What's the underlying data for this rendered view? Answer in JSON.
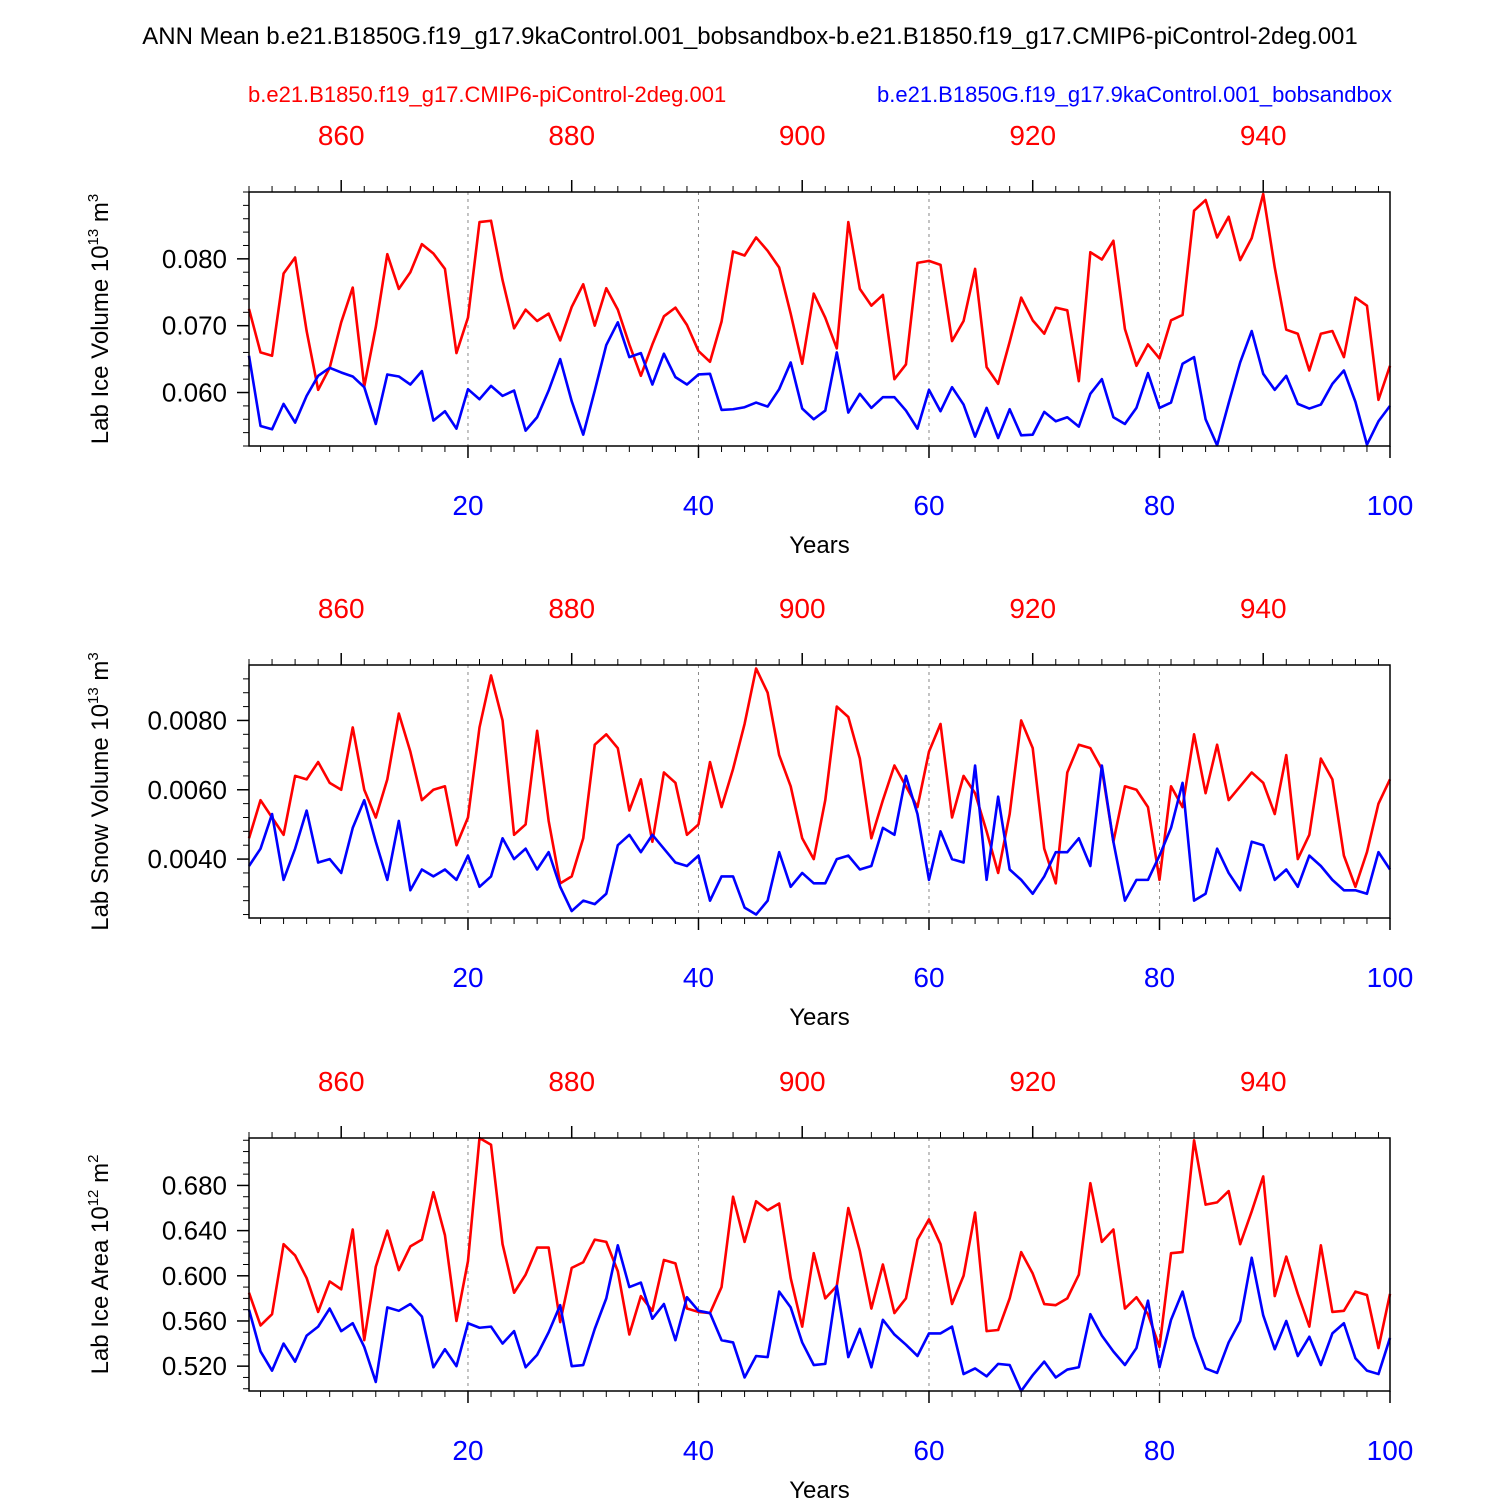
{
  "title": "ANN Mean b.e21.B1850G.f19_g17.9kaControl.001_bobsandbox-b.e21.B1850.f19_g17.CMIP6-piControl-2deg.001",
  "legend": {
    "red_label": "b.e21.B1850.f19_g17.CMIP6-piControl-2deg.001",
    "blue_label": "b.e21.B1850G.f19_g17.9kaControl.001_bobsandbox"
  },
  "colors": {
    "red": "#ff0000",
    "blue": "#0000ff",
    "axis": "#000000",
    "grid": "#888888"
  },
  "chart_data": [
    {
      "type": "line",
      "ylabel": "Lab Ice Volume",
      "yunit": "10^13 m^3",
      "yunit_parts": [
        "Lab Ice Volume 10",
        "13",
        " m",
        "3"
      ],
      "xlabel": "Years",
      "xlim": [
        1,
        100
      ],
      "ylim": [
        0.052,
        0.09
      ],
      "yticks": [
        0.06,
        0.07,
        0.08
      ],
      "ytick_labels": [
        "0.060",
        "0.070",
        "0.080"
      ],
      "yminor": [
        0.052,
        0.054,
        0.056,
        0.058,
        0.062,
        0.064,
        0.066,
        0.068,
        0.072,
        0.074,
        0.076,
        0.078,
        0.082,
        0.084,
        0.086,
        0.088,
        0.09
      ],
      "xticks": [
        20,
        40,
        60,
        80,
        100
      ],
      "xtick_labels": [
        "20",
        "40",
        "60",
        "80",
        "100"
      ],
      "top_xticks": [
        860,
        880,
        900,
        920,
        940
      ],
      "top_xtick_labels": [
        "860",
        "880",
        "900",
        "920",
        "940"
      ],
      "top_offset": 851,
      "grid_x": [
        20,
        40,
        60,
        80
      ],
      "series": [
        {
          "name": "b.e21.B1850.f19_g17.CMIP6-piControl-2deg.001",
          "color": "red",
          "values": [
            0.0725,
            0.066,
            0.0655,
            0.0778,
            0.0802,
            0.0692,
            0.0604,
            0.0637,
            0.0705,
            0.0757,
            0.0609,
            0.0698,
            0.0807,
            0.0755,
            0.078,
            0.0822,
            0.0808,
            0.0785,
            0.0659,
            0.0712,
            0.0855,
            0.0857,
            0.0768,
            0.0696,
            0.0724,
            0.0707,
            0.0718,
            0.0678,
            0.0728,
            0.0762,
            0.07,
            0.0756,
            0.0724,
            0.0672,
            0.0625,
            0.0672,
            0.0714,
            0.0727,
            0.0701,
            0.0662,
            0.0646,
            0.0706,
            0.0811,
            0.0805,
            0.0832,
            0.0812,
            0.0787,
            0.0718,
            0.0643,
            0.0748,
            0.0712,
            0.0666,
            0.0855,
            0.0755,
            0.073,
            0.0746,
            0.062,
            0.0642,
            0.0794,
            0.0797,
            0.0791,
            0.0677,
            0.0707,
            0.0785,
            0.0638,
            0.0613,
            0.0676,
            0.0742,
            0.0708,
            0.0688,
            0.0727,
            0.0723,
            0.0617,
            0.081,
            0.0799,
            0.0827,
            0.0695,
            0.064,
            0.0672,
            0.0651,
            0.0708,
            0.0716,
            0.0872,
            0.0888,
            0.0832,
            0.0863,
            0.0798,
            0.0831,
            0.0897,
            0.0787,
            0.0694,
            0.0688,
            0.0633,
            0.0688,
            0.0692,
            0.0653,
            0.0742,
            0.073,
            0.0589,
            0.064
          ]
        },
        {
          "name": "b.e21.B1850G.f19_g17.9kaControl.001_bobsandbox",
          "color": "blue",
          "values": [
            0.0655,
            0.055,
            0.0545,
            0.0583,
            0.0555,
            0.0595,
            0.0625,
            0.0637,
            0.063,
            0.0624,
            0.0608,
            0.0553,
            0.0627,
            0.0624,
            0.0612,
            0.0632,
            0.0558,
            0.0572,
            0.0546,
            0.0605,
            0.059,
            0.061,
            0.0595,
            0.0603,
            0.0543,
            0.0563,
            0.0603,
            0.065,
            0.0587,
            0.0537,
            0.0603,
            0.0671,
            0.0705,
            0.0653,
            0.0659,
            0.0612,
            0.0658,
            0.0623,
            0.0612,
            0.0627,
            0.0628,
            0.0574,
            0.0575,
            0.0578,
            0.0585,
            0.0579,
            0.0605,
            0.0645,
            0.0576,
            0.056,
            0.0573,
            0.066,
            0.057,
            0.0598,
            0.0577,
            0.0593,
            0.0593,
            0.0573,
            0.0546,
            0.0604,
            0.0572,
            0.0608,
            0.0582,
            0.0534,
            0.0577,
            0.0532,
            0.0575,
            0.0536,
            0.0537,
            0.0571,
            0.0557,
            0.0563,
            0.0549,
            0.0598,
            0.062,
            0.0563,
            0.0553,
            0.0577,
            0.0629,
            0.0577,
            0.0585,
            0.0643,
            0.0653,
            0.056,
            0.0521,
            0.0584,
            0.0645,
            0.0692,
            0.0628,
            0.0604,
            0.0625,
            0.0583,
            0.0576,
            0.0582,
            0.0613,
            0.0633,
            0.0586,
            0.0522,
            0.0557,
            0.058
          ]
        }
      ]
    },
    {
      "type": "line",
      "ylabel": "Lab Snow Volume",
      "yunit": "10^13 m^3",
      "yunit_parts": [
        "Lab Snow Volume 10",
        "13",
        " m",
        "3"
      ],
      "xlabel": "Years",
      "xlim": [
        1,
        100
      ],
      "ylim": [
        0.0023,
        0.0096
      ],
      "yticks": [
        0.004,
        0.006,
        0.008
      ],
      "ytick_labels": [
        "0.0040",
        "0.0060",
        "0.0080"
      ],
      "yminor": [
        0.0024,
        0.0028,
        0.0032,
        0.0036,
        0.0044,
        0.0048,
        0.0052,
        0.0056,
        0.0064,
        0.0068,
        0.0072,
        0.0076,
        0.0084,
        0.0088,
        0.0092
      ],
      "xticks": [
        20,
        40,
        60,
        80,
        100
      ],
      "xtick_labels": [
        "20",
        "40",
        "60",
        "80",
        "100"
      ],
      "top_xticks": [
        860,
        880,
        900,
        920,
        940
      ],
      "top_xtick_labels": [
        "860",
        "880",
        "900",
        "920",
        "940"
      ],
      "top_offset": 851,
      "grid_x": [
        20,
        40,
        60,
        80
      ],
      "series": [
        {
          "name": "b.e21.B1850.f19_g17.CMIP6-piControl-2deg.001",
          "color": "red",
          "values": [
            0.0046,
            0.0057,
            0.0052,
            0.0047,
            0.0064,
            0.0063,
            0.0068,
            0.0062,
            0.006,
            0.0078,
            0.006,
            0.0052,
            0.0063,
            0.0082,
            0.0071,
            0.0057,
            0.006,
            0.0061,
            0.0044,
            0.0052,
            0.0078,
            0.0093,
            0.008,
            0.0047,
            0.005,
            0.0077,
            0.0051,
            0.0033,
            0.0035,
            0.0046,
            0.0073,
            0.0076,
            0.0072,
            0.0054,
            0.0063,
            0.0045,
            0.0065,
            0.0062,
            0.0047,
            0.005,
            0.0068,
            0.0055,
            0.0066,
            0.0079,
            0.0095,
            0.0088,
            0.007,
            0.0061,
            0.0046,
            0.004,
            0.0057,
            0.0084,
            0.0081,
            0.0069,
            0.0046,
            0.0057,
            0.0067,
            0.0061,
            0.0055,
            0.0071,
            0.0079,
            0.0052,
            0.0064,
            0.0059,
            0.0048,
            0.0036,
            0.0053,
            0.008,
            0.0072,
            0.0043,
            0.0033,
            0.0065,
            0.0073,
            0.0072,
            0.0066,
            0.0045,
            0.0061,
            0.006,
            0.0055,
            0.0034,
            0.0061,
            0.0055,
            0.0076,
            0.0059,
            0.0073,
            0.0057,
            0.0061,
            0.0065,
            0.0062,
            0.0053,
            0.007,
            0.004,
            0.0047,
            0.0069,
            0.0063,
            0.0041,
            0.0032,
            0.0042,
            0.0056,
            0.0063
          ]
        },
        {
          "name": "b.e21.B1850G.f19_g17.9kaControl.001_bobsandbox",
          "color": "blue",
          "values": [
            0.0038,
            0.0043,
            0.0053,
            0.0034,
            0.0043,
            0.0054,
            0.0039,
            0.004,
            0.0036,
            0.0049,
            0.0057,
            0.0045,
            0.0034,
            0.0051,
            0.0031,
            0.0037,
            0.0035,
            0.0037,
            0.0034,
            0.0041,
            0.0032,
            0.0035,
            0.0046,
            0.004,
            0.0043,
            0.0037,
            0.0042,
            0.0032,
            0.0025,
            0.0028,
            0.0027,
            0.003,
            0.0044,
            0.0047,
            0.0042,
            0.0047,
            0.0043,
            0.0039,
            0.0038,
            0.0041,
            0.0028,
            0.0035,
            0.0035,
            0.0026,
            0.0024,
            0.0028,
            0.0042,
            0.0032,
            0.0036,
            0.0033,
            0.0033,
            0.004,
            0.0041,
            0.0037,
            0.0038,
            0.0049,
            0.0047,
            0.0064,
            0.0053,
            0.0034,
            0.0048,
            0.004,
            0.0039,
            0.0067,
            0.0034,
            0.0058,
            0.0037,
            0.0034,
            0.003,
            0.0035,
            0.0042,
            0.0042,
            0.0046,
            0.0038,
            0.0067,
            0.0045,
            0.0028,
            0.0034,
            0.0034,
            0.0041,
            0.0049,
            0.0062,
            0.0028,
            0.003,
            0.0043,
            0.0036,
            0.0031,
            0.0045,
            0.0044,
            0.0034,
            0.0037,
            0.0032,
            0.0041,
            0.0038,
            0.0034,
            0.0031,
            0.0031,
            0.003,
            0.0042,
            0.0037
          ]
        }
      ]
    },
    {
      "type": "line",
      "ylabel": "Lab Ice Area",
      "yunit": "10^12 m^2",
      "yunit_parts": [
        "Lab Ice Area 10",
        "12",
        " m",
        "2"
      ],
      "xlabel": "Years",
      "xlim": [
        1,
        100
      ],
      "ylim": [
        0.498,
        0.722
      ],
      "yticks": [
        0.52,
        0.56,
        0.6,
        0.64,
        0.68
      ],
      "ytick_labels": [
        "0.520",
        "0.560",
        "0.600",
        "0.640",
        "0.680"
      ],
      "yminor": [
        0.5,
        0.51,
        0.53,
        0.54,
        0.55,
        0.57,
        0.58,
        0.59,
        0.61,
        0.62,
        0.63,
        0.65,
        0.66,
        0.67,
        0.69,
        0.7,
        0.71,
        0.72
      ],
      "xticks": [
        20,
        40,
        60,
        80,
        100
      ],
      "xtick_labels": [
        "20",
        "40",
        "60",
        "80",
        "100"
      ],
      "top_xticks": [
        860,
        880,
        900,
        920,
        940
      ],
      "top_xtick_labels": [
        "860",
        "880",
        "900",
        "920",
        "940"
      ],
      "top_offset": 851,
      "grid_x": [
        20,
        40,
        60,
        80
      ],
      "series": [
        {
          "name": "b.e21.B1850.f19_g17.CMIP6-piControl-2deg.001",
          "color": "red",
          "values": [
            0.585,
            0.556,
            0.566,
            0.628,
            0.618,
            0.598,
            0.568,
            0.595,
            0.588,
            0.641,
            0.543,
            0.608,
            0.64,
            0.605,
            0.626,
            0.632,
            0.674,
            0.636,
            0.56,
            0.613,
            0.722,
            0.716,
            0.628,
            0.585,
            0.601,
            0.625,
            0.625,
            0.559,
            0.607,
            0.612,
            0.632,
            0.63,
            0.604,
            0.548,
            0.582,
            0.569,
            0.614,
            0.611,
            0.571,
            0.568,
            0.567,
            0.59,
            0.67,
            0.63,
            0.666,
            0.658,
            0.664,
            0.598,
            0.555,
            0.62,
            0.58,
            0.591,
            0.66,
            0.622,
            0.571,
            0.61,
            0.567,
            0.58,
            0.632,
            0.65,
            0.628,
            0.575,
            0.6,
            0.656,
            0.551,
            0.552,
            0.58,
            0.621,
            0.602,
            0.575,
            0.574,
            0.58,
            0.601,
            0.682,
            0.63,
            0.641,
            0.571,
            0.581,
            0.566,
            0.537,
            0.62,
            0.621,
            0.72,
            0.663,
            0.665,
            0.675,
            0.628,
            0.657,
            0.688,
            0.582,
            0.617,
            0.584,
            0.555,
            0.627,
            0.568,
            0.569,
            0.586,
            0.583,
            0.536,
            0.584
          ]
        },
        {
          "name": "b.e21.B1850G.f19_g17.9kaControl.001_bobsandbox",
          "color": "blue",
          "values": [
            0.57,
            0.533,
            0.516,
            0.54,
            0.524,
            0.547,
            0.555,
            0.571,
            0.551,
            0.558,
            0.537,
            0.506,
            0.572,
            0.569,
            0.575,
            0.564,
            0.519,
            0.535,
            0.52,
            0.558,
            0.554,
            0.555,
            0.54,
            0.551,
            0.519,
            0.53,
            0.55,
            0.574,
            0.52,
            0.521,
            0.553,
            0.58,
            0.627,
            0.59,
            0.594,
            0.562,
            0.575,
            0.543,
            0.581,
            0.569,
            0.567,
            0.543,
            0.541,
            0.51,
            0.529,
            0.528,
            0.586,
            0.572,
            0.541,
            0.521,
            0.522,
            0.591,
            0.528,
            0.553,
            0.519,
            0.561,
            0.548,
            0.539,
            0.529,
            0.549,
            0.549,
            0.555,
            0.513,
            0.518,
            0.511,
            0.522,
            0.521,
            0.498,
            0.512,
            0.524,
            0.51,
            0.517,
            0.519,
            0.566,
            0.547,
            0.533,
            0.521,
            0.536,
            0.578,
            0.519,
            0.561,
            0.586,
            0.546,
            0.518,
            0.514,
            0.541,
            0.56,
            0.616,
            0.565,
            0.535,
            0.56,
            0.529,
            0.546,
            0.521,
            0.549,
            0.558,
            0.527,
            0.516,
            0.513,
            0.545
          ]
        }
      ]
    }
  ]
}
